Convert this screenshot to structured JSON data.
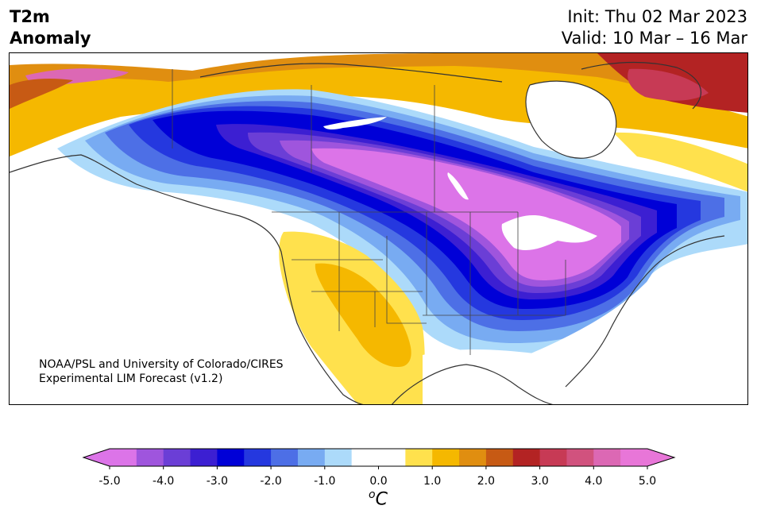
{
  "header": {
    "title_line1": "T2m",
    "title_line2": "Anomaly",
    "init": "Init: Thu 02 Mar 2023",
    "valid": "Valid: 10 Mar – 16 Mar"
  },
  "map": {
    "region": "North America",
    "credit_line1": "NOAA/PSL and University of Colorado/CIRES",
    "credit_line2": "Experimental LIM Forecast (v1.2)"
  },
  "colorbar": {
    "unit_base": "C",
    "unit_sup": "o",
    "levels": [
      -5.0,
      -4.5,
      -4.0,
      -3.5,
      -3.0,
      -2.5,
      -2.0,
      -1.5,
      -1.0,
      -0.5,
      0.5,
      1.0,
      1.5,
      2.0,
      2.5,
      3.0,
      3.5,
      4.0,
      4.5,
      5.0
    ],
    "tick_labels": [
      "-5.0",
      "-4.0",
      "-3.0",
      "-2.0",
      "-1.0",
      "0.0",
      "1.0",
      "2.0",
      "3.0",
      "4.0",
      "5.0"
    ],
    "colors": [
      "#dc74e8",
      "#9f55dd",
      "#6b3ed6",
      "#3c1fd2",
      "#0000d7",
      "#2538df",
      "#4d6fe6",
      "#78abf2",
      "#acdafa",
      "#ffffff",
      "#ffe14d",
      "#f5b800",
      "#e08e10",
      "#c75a14",
      "#b32323",
      "#c73a55",
      "#d1527e",
      "#dc68b4",
      "#e876d8"
    ],
    "extend_low_color": "#dc74e8",
    "extend_high_color": "#e876d8"
  }
}
